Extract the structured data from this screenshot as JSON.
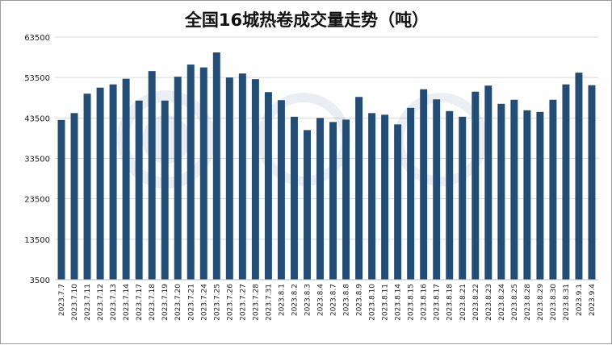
{
  "chart_data": {
    "type": "bar",
    "title": "全国16城热卷成交量走势（吨）",
    "xlabel": "",
    "ylabel": "",
    "ylim": [
      3500,
      63500
    ],
    "yticks": [
      "63500",
      "53500",
      "43500",
      "33500",
      "23500",
      "13500",
      "3500"
    ],
    "grid": true,
    "legend": "none",
    "bar_color": "#244d76",
    "categories": [
      "2023.7.7",
      "2023.7.10",
      "2023.7.11",
      "2023.7.12",
      "2023.7.13",
      "2023.7.14",
      "2023.7.17",
      "2023.7.18",
      "2023.7.19",
      "2023.7.20",
      "2023.7.21",
      "2023.7.24",
      "2023.7.25",
      "2023.7.26",
      "2023.7.27",
      "2023.7.28",
      "2023.7.31",
      "2023.8.1",
      "2023.8.2",
      "2023.8.3",
      "2023.8.4",
      "2023.8.7",
      "2023.8.8",
      "2023.8.9",
      "2023.8.10",
      "2023.8.11",
      "2023.8.14",
      "2023.8.15",
      "2023.8.16",
      "2023.8.17",
      "2023.8.18",
      "2023.8.21",
      "2023.8.22",
      "2023.8.23",
      "2023.8.24",
      "2023.8.25",
      "2023.8.28",
      "2023.8.29",
      "2023.8.30",
      "2023.8.31",
      "2023.9.1",
      "2023.9.4"
    ],
    "values": [
      43000,
      44700,
      49500,
      51000,
      51800,
      53200,
      47800,
      55100,
      47800,
      53700,
      56700,
      56000,
      59700,
      53500,
      54500,
      53100,
      49900,
      47900,
      43800,
      40500,
      43500,
      42500,
      43100,
      48700,
      44700,
      44300,
      41900,
      46000,
      50600,
      48100,
      45200,
      43800,
      50000,
      51500,
      47000,
      48000,
      45400,
      45000,
      48000,
      51800,
      54700,
      51600
    ]
  }
}
